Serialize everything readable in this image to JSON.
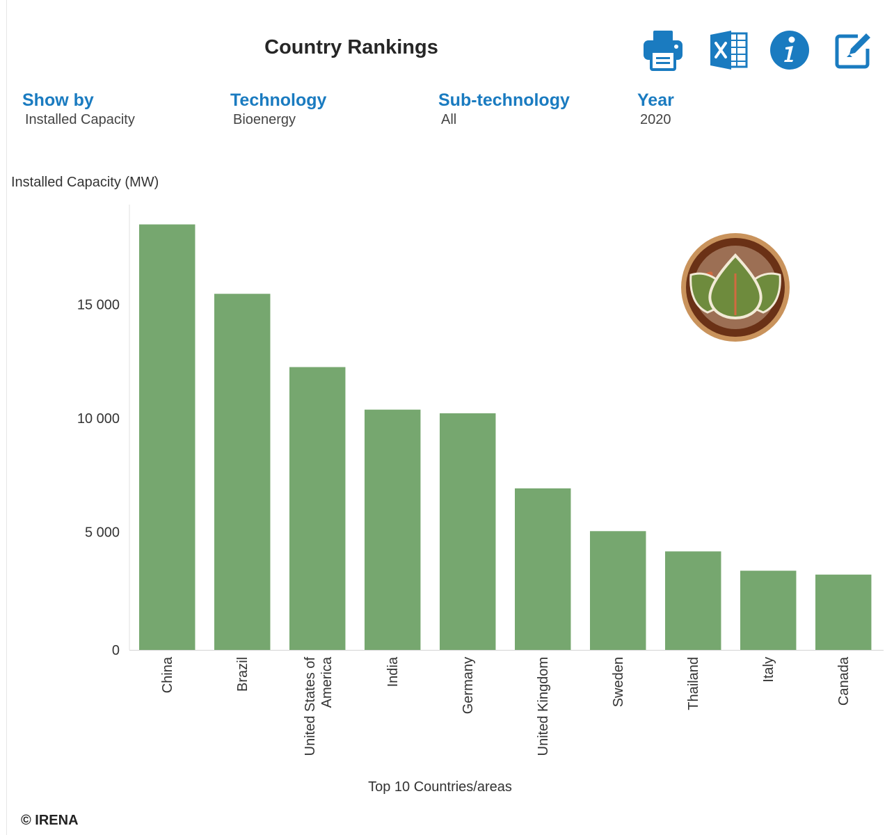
{
  "header": {
    "title": "Country Rankings",
    "tools": [
      {
        "name": "print-button",
        "icon": "printer-icon"
      },
      {
        "name": "excel-export-button",
        "icon": "excel-icon"
      },
      {
        "name": "info-button",
        "icon": "info-icon"
      },
      {
        "name": "edit-button",
        "icon": "edit-icon"
      }
    ]
  },
  "filters": [
    {
      "label": "Show by",
      "value": "Installed Capacity"
    },
    {
      "label": "Technology",
      "value": "Bioenergy"
    },
    {
      "label": "Sub-technology",
      "value": "All"
    },
    {
      "label": "Year",
      "value": "2020"
    }
  ],
  "chart_data": {
    "type": "bar",
    "categories": [
      "China",
      "Brazil",
      "United States of America",
      "India",
      "Germany",
      "United Kingdom",
      "Sweden",
      "Thailand",
      "Italy",
      "Canada"
    ],
    "values": [
      18700,
      15650,
      12430,
      10560,
      10400,
      7100,
      5220,
      4330,
      3480,
      3310
    ],
    "ylabel": "Installed Capacity (MW)",
    "xlabel": "Top 10 Countries/areas",
    "yticks": [
      0,
      5000,
      10000,
      15000
    ],
    "ytick_labels": [
      "0",
      "5 000",
      "10 000",
      "15 000"
    ],
    "ylim": [
      0,
      19500
    ],
    "bar_color": "#76a76f",
    "grid": false,
    "emblem": "bioenergy-leaf-icon"
  },
  "footer": {
    "copyright": "© IRENA"
  },
  "colors": {
    "accent": "#1a7bc0",
    "bar": "#76a76f"
  }
}
